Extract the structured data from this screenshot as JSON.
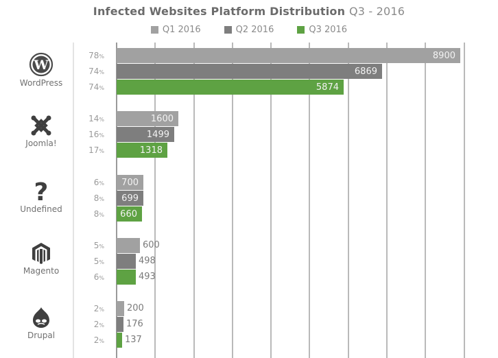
{
  "title": {
    "main": "Infected Websites Platform Distribution",
    "sub": "Q3 - 2016"
  },
  "legend": [
    {
      "label": "Q1 2016",
      "color": "#a1a1a1"
    },
    {
      "label": "Q2 2016",
      "color": "#7e7e7e"
    },
    {
      "label": "Q3 2016",
      "color": "#5ea243"
    }
  ],
  "platforms": [
    {
      "name": "WordPress",
      "icon": "wordpress-icon",
      "pcts": [
        "78",
        "74",
        "74"
      ],
      "values": [
        "8900",
        "6869",
        "5874"
      ]
    },
    {
      "name": "Joomla!",
      "icon": "joomla-icon",
      "pcts": [
        "14",
        "16",
        "17"
      ],
      "values": [
        "1600",
        "1499",
        "1318"
      ]
    },
    {
      "name": "Undefined",
      "icon": "question-mark-icon",
      "pcts": [
        "6",
        "8",
        "8"
      ],
      "values": [
        "700",
        "699",
        "660"
      ]
    },
    {
      "name": "Magento",
      "icon": "magento-icon",
      "pcts": [
        "5",
        "5",
        "6"
      ],
      "values": [
        "600",
        "498",
        "493"
      ]
    },
    {
      "name": "Drupal",
      "icon": "drupal-icon",
      "pcts": [
        "2",
        "2",
        "2"
      ],
      "values": [
        "200",
        "176",
        "137"
      ]
    }
  ],
  "pct_suffix": "%",
  "chart_data": {
    "type": "bar",
    "orientation": "horizontal",
    "title": "Infected Websites Platform Distribution Q3 - 2016",
    "categories": [
      "WordPress",
      "Joomla!",
      "Undefined",
      "Magento",
      "Drupal"
    ],
    "series": [
      {
        "name": "Q1 2016",
        "color": "#a1a1a1",
        "values": [
          8900,
          1600,
          700,
          600,
          200
        ],
        "percent": [
          78,
          14,
          6,
          5,
          2
        ]
      },
      {
        "name": "Q2 2016",
        "color": "#7e7e7e",
        "values": [
          6869,
          1499,
          699,
          498,
          176
        ],
        "percent": [
          74,
          16,
          8,
          5,
          2
        ]
      },
      {
        "name": "Q3 2016",
        "color": "#5ea243",
        "values": [
          5874,
          1318,
          660,
          493,
          137
        ],
        "percent": [
          74,
          17,
          8,
          6,
          2
        ]
      }
    ],
    "xlim": [
      0,
      9000
    ],
    "grid": true,
    "grid_step": 1000,
    "legend_position": "top",
    "xlabel": "",
    "ylabel": ""
  }
}
